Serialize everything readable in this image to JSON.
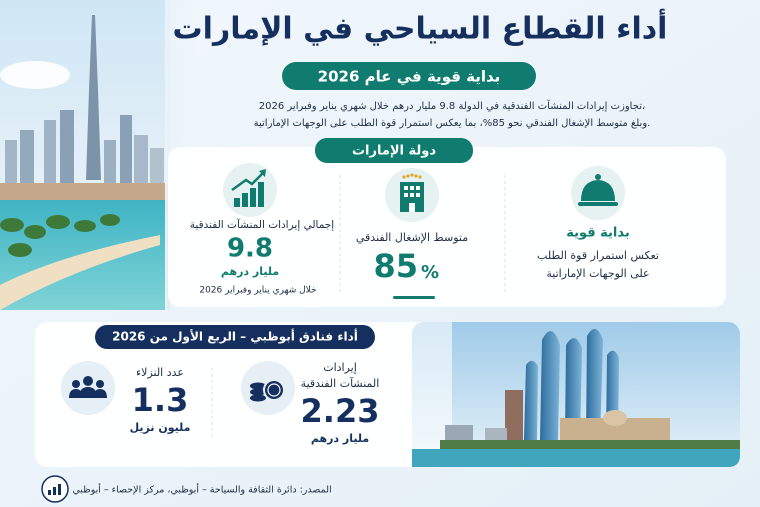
{
  "header": {
    "title": "أداء القطاع السياحي في الإمارات",
    "subtitle": "بداية قوية في عام 2026"
  },
  "intro": {
    "lines": [
      "تجاوزت إيرادات المنشآت الفندقية في الدولة 9.8 مليار درهم خلال شهري يناير وفبراير 2026،",
      "وبلغ متوسط الإشغال الفندقي نحو 85%، بما يعكس استمرار قوة الطلب على الوجهات الإماراتية."
    ]
  },
  "uae": {
    "title": "دولة الإمارات",
    "strong_start": {
      "title": "بداية قوية",
      "lines": [
        "تعكس استمرار قوة الطلب",
        "على الوجهات الإماراتية"
      ]
    },
    "occupancy": {
      "label": "متوسط الإشغال الفندقي",
      "value": "85",
      "unit": "%"
    },
    "revenue": {
      "label": "إجمالي إيرادات المنشآت الفندقية",
      "value": "9.8",
      "unit": "مليار درهم",
      "period": "خلال شهري يناير وفبراير 2026"
    }
  },
  "abu_dhabi": {
    "title": "أداء فنادق أبوظبي – الربع الأول من 2026",
    "revenue": {
      "label_lines": [
        "إيرادات",
        "المنشآت الفندقية"
      ],
      "value": "2.23",
      "unit": "مليار درهم"
    },
    "guests": {
      "label": "عدد النزلاء",
      "value": "1.3",
      "unit": "مليون نزيل"
    }
  },
  "source": "المصدر: دائرة الثقافة والسياحة – أبوظبي، مركز الإحصاء – أبوظبي"
}
